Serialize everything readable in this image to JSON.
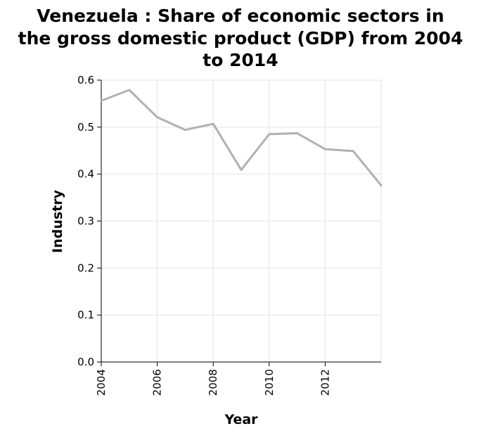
{
  "chart_data": {
    "type": "line",
    "title_lines": [
      "Venezuela : Share of economic sectors in",
      "the gross domestic product (GDP) from 2004",
      "to 2014"
    ],
    "xlabel": "Year",
    "ylabel": "Industry",
    "xlim": [
      2004,
      2014
    ],
    "ylim": [
      0,
      0.6
    ],
    "x_ticks": [
      2004,
      2006,
      2008,
      2010,
      2012
    ],
    "x_tick_labels": [
      "2004",
      "2006",
      "2008",
      "2010",
      "2012"
    ],
    "y_ticks": [
      0,
      0.1,
      0.2,
      0.3,
      0.4,
      0.5,
      0.6
    ],
    "y_tick_labels": [
      "0.0",
      "0.1",
      "0.2",
      "0.3",
      "0.4",
      "0.5",
      "0.6"
    ],
    "grid": true,
    "series": [
      {
        "x": [
          2004,
          2005,
          2006,
          2007,
          2008,
          2009,
          2010,
          2011,
          2012,
          2013,
          2014
        ],
        "y": [
          0.556,
          0.579,
          0.521,
          0.494,
          0.507,
          0.409,
          0.485,
          0.487,
          0.453,
          0.449,
          0.376
        ],
        "color": "#b8aeaa"
      }
    ]
  }
}
